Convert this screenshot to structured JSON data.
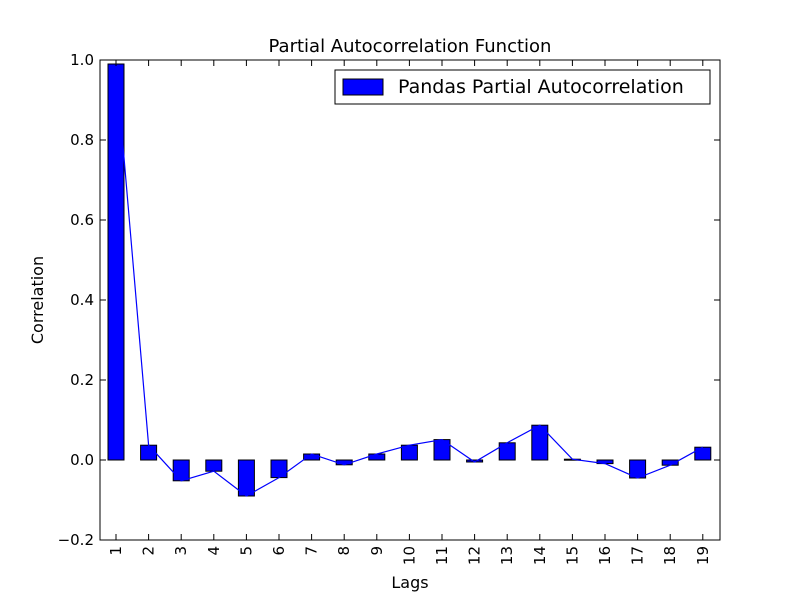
{
  "chart_data": {
    "type": "bar",
    "title": "Partial Autocorrelation Function",
    "xlabel": "Lags",
    "ylabel": "Correlation",
    "categories": [
      "1",
      "2",
      "3",
      "4",
      "5",
      "6",
      "7",
      "8",
      "9",
      "10",
      "11",
      "12",
      "13",
      "14",
      "15",
      "16",
      "17",
      "18",
      "19"
    ],
    "series": [
      {
        "name": "Pandas Partial Autocorrelation",
        "values": [
          0.99,
          0.037,
          -0.052,
          -0.028,
          -0.09,
          -0.044,
          0.015,
          -0.012,
          0.015,
          0.037,
          0.051,
          -0.005,
          0.043,
          0.087,
          0.002,
          -0.009,
          -0.045,
          -0.013,
          0.032
        ]
      }
    ],
    "ylim": [
      -0.2,
      1.0
    ],
    "yticks": [
      "1.0",
      "0.8",
      "0.6",
      "0.4",
      "0.2",
      "0.0",
      "−0.2"
    ],
    "ytick_values": [
      1.0,
      0.8,
      0.6,
      0.4,
      0.2,
      0.0,
      -0.2
    ],
    "legend_position": "top-right",
    "grid": false,
    "colors": {
      "bar": "#0000ff",
      "line": "#0000ff",
      "edge": "#000000"
    }
  }
}
